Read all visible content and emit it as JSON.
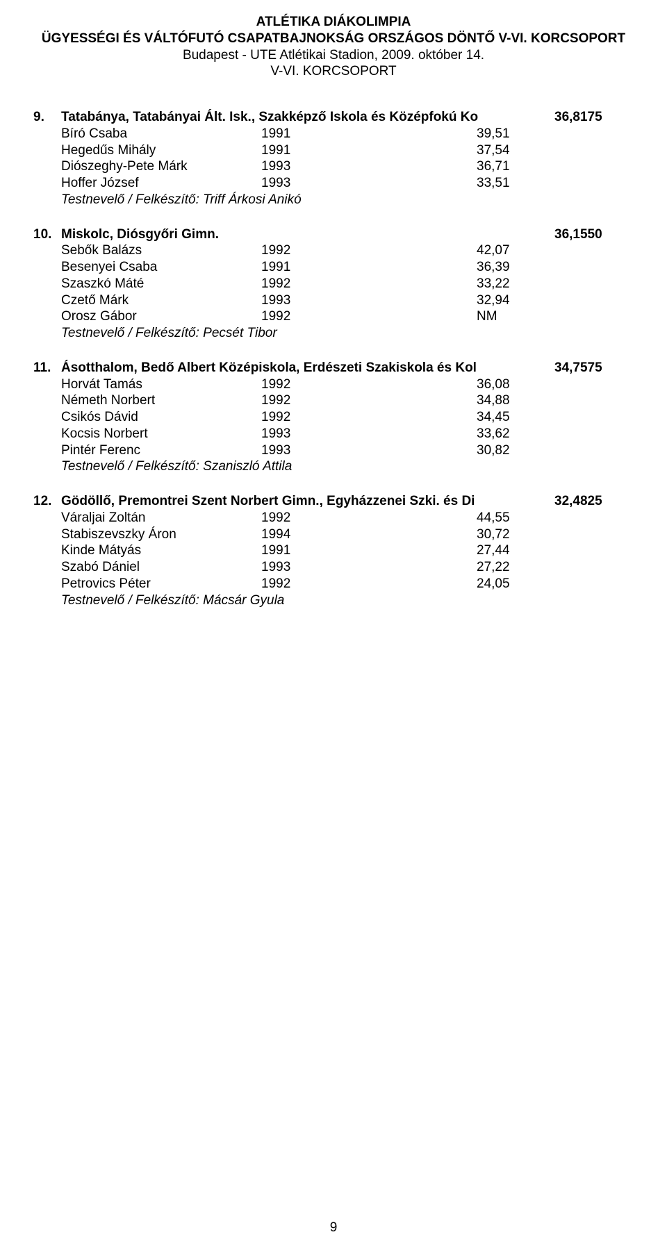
{
  "header": {
    "title1": "ATLÉTIKA DIÁKOLIMPIA",
    "title2": "ÜGYESSÉGI ÉS VÁLTÓFUTÓ CSAPATBAJNOKSÁG ORSZÁGOS DÖNTŐ V-VI. KORCSOPORT",
    "subtitle1": "Budapest - UTE Atlétikai Stadion, 2009. október 14.",
    "subtitle2": "V-VI. KORCSOPORT"
  },
  "coach_prefix": "Testnevelő / Felkészítő: ",
  "entries": [
    {
      "rank": "9.",
      "team": "Tatabánya, Tatabányai Ált. Isk., Szakképző Iskola és Középfokú Ko",
      "score": "36,8175",
      "athletes": [
        {
          "name": "Bíró Csaba",
          "year": "1991",
          "result": "39,51"
        },
        {
          "name": "Hegedűs Mihály",
          "year": "1991",
          "result": "37,54"
        },
        {
          "name": "Diószeghy-Pete Márk",
          "year": "1993",
          "result": "36,71"
        },
        {
          "name": "Hoffer József",
          "year": "1993",
          "result": "33,51"
        }
      ],
      "coach": "Triff Árkosi Anikó"
    },
    {
      "rank": "10.",
      "team": "Miskolc, Diósgyőri Gimn.",
      "score": "36,1550",
      "athletes": [
        {
          "name": "Sebők Balázs",
          "year": "1992",
          "result": "42,07"
        },
        {
          "name": "Besenyei Csaba",
          "year": "1991",
          "result": "36,39"
        },
        {
          "name": "Szaszkó Máté",
          "year": "1992",
          "result": "33,22"
        },
        {
          "name": "Czető Márk",
          "year": "1993",
          "result": "32,94"
        },
        {
          "name": "Orosz Gábor",
          "year": "1992",
          "result": "NM"
        }
      ],
      "coach": "Pecsét Tibor"
    },
    {
      "rank": "11.",
      "team": "Ásotthalom, Bedő Albert Középiskola, Erdészeti Szakiskola és Kol",
      "score": "34,7575",
      "athletes": [
        {
          "name": "Horvát Tamás",
          "year": "1992",
          "result": "36,08"
        },
        {
          "name": "Németh Norbert",
          "year": "1992",
          "result": "34,88"
        },
        {
          "name": "Csikós Dávid",
          "year": "1992",
          "result": "34,45"
        },
        {
          "name": "Kocsis Norbert",
          "year": "1993",
          "result": "33,62"
        },
        {
          "name": "Pintér Ferenc",
          "year": "1993",
          "result": "30,82"
        }
      ],
      "coach": "Szaniszló Attila"
    },
    {
      "rank": "12.",
      "team": "Gödöllő, Premontrei Szent Norbert Gimn., Egyházzenei Szki. és Di",
      "score": "32,4825",
      "athletes": [
        {
          "name": "Váraljai Zoltán",
          "year": "1992",
          "result": "44,55"
        },
        {
          "name": "Stabiszevszky Áron",
          "year": "1994",
          "result": "30,72"
        },
        {
          "name": "Kinde Mátyás",
          "year": "1991",
          "result": "27,44"
        },
        {
          "name": "Szabó Dániel",
          "year": "1993",
          "result": "27,22"
        },
        {
          "name": "Petrovics Péter",
          "year": "1992",
          "result": "24,05"
        }
      ],
      "coach": "Mácsár Gyula"
    }
  ],
  "page_number": "9"
}
